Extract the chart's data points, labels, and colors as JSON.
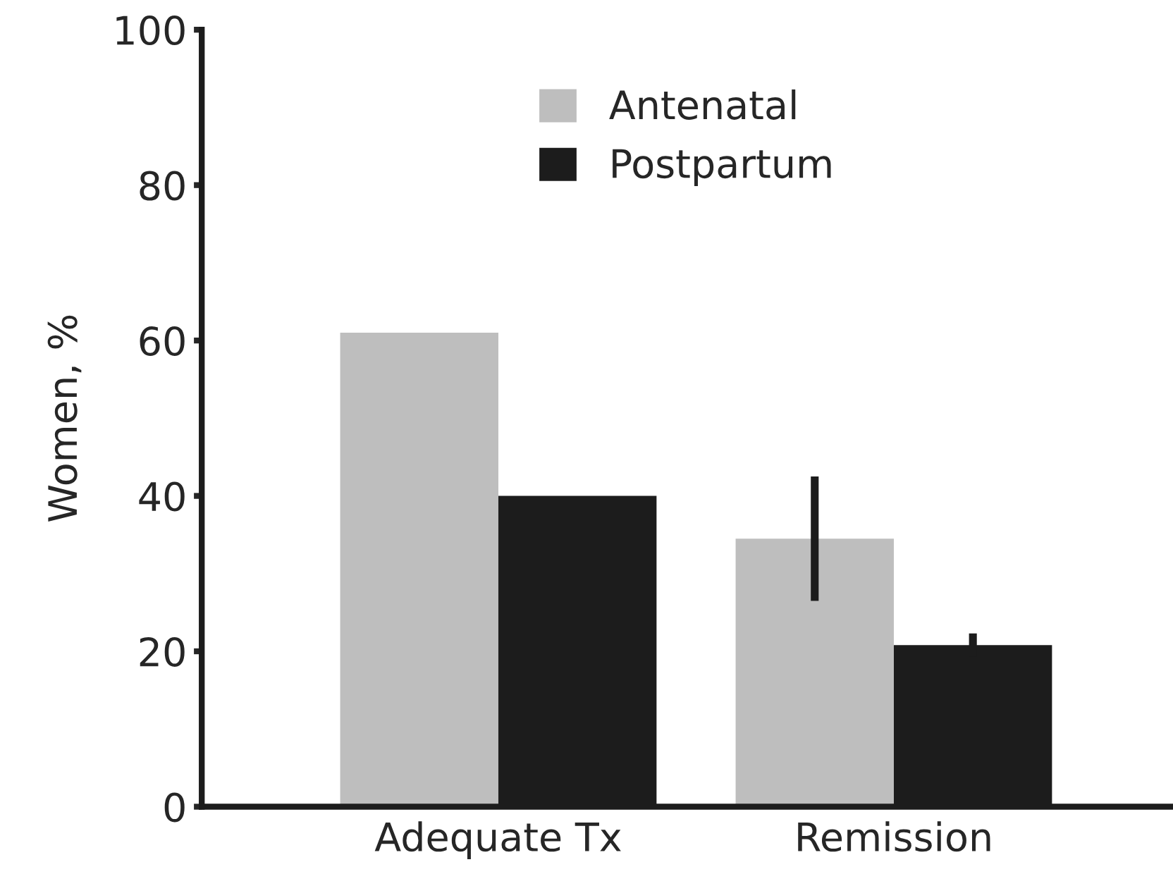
{
  "chart_data": {
    "type": "bar",
    "ylabel": "Women, %",
    "categories": [
      "Adequate Tx",
      "Remission"
    ],
    "series": [
      {
        "name": "Antenatal",
        "color": "#bebebe",
        "values": [
          61,
          34.5
        ],
        "errors": [
          null,
          8
        ]
      },
      {
        "name": "Postpartum",
        "color": "#1c1c1c",
        "values": [
          40,
          20.8
        ],
        "errors": [
          null,
          1.5
        ]
      }
    ],
    "ylim": [
      0,
      100
    ],
    "yticks": [
      0,
      20,
      40,
      60,
      80,
      100
    ],
    "grid": false,
    "legend": "top"
  }
}
